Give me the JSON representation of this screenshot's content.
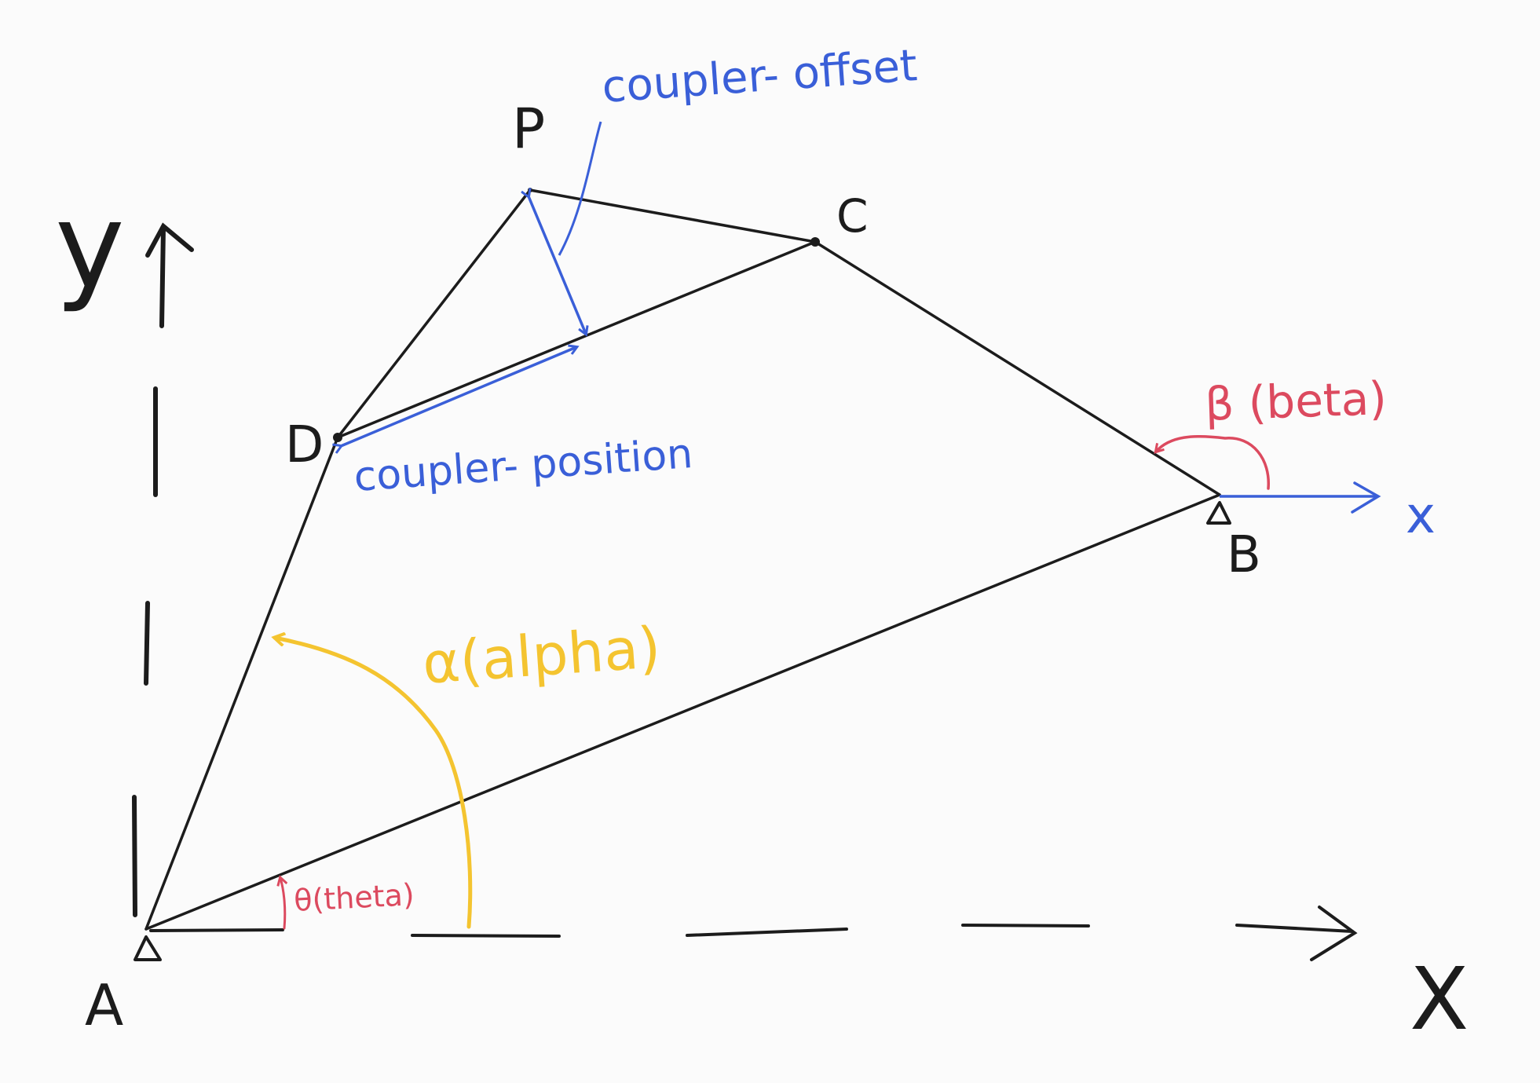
{
  "colors": {
    "ink": "#1c1c1c",
    "blue": "#3a5fd8",
    "red": "#dc4a5f",
    "yellow": "#f4c430",
    "background": "#fbfbfb"
  },
  "points": {
    "A": "A",
    "B": "B",
    "C": "C",
    "D": "D",
    "P": "P"
  },
  "axes": {
    "global_x": "X",
    "global_y": "y",
    "local_x": "x"
  },
  "annotations": {
    "coupler_offset": "coupler- offset",
    "coupler_position": "coupler- position",
    "alpha": "α(alpha)",
    "beta": "β (beta)",
    "theta": "θ(theta)"
  }
}
